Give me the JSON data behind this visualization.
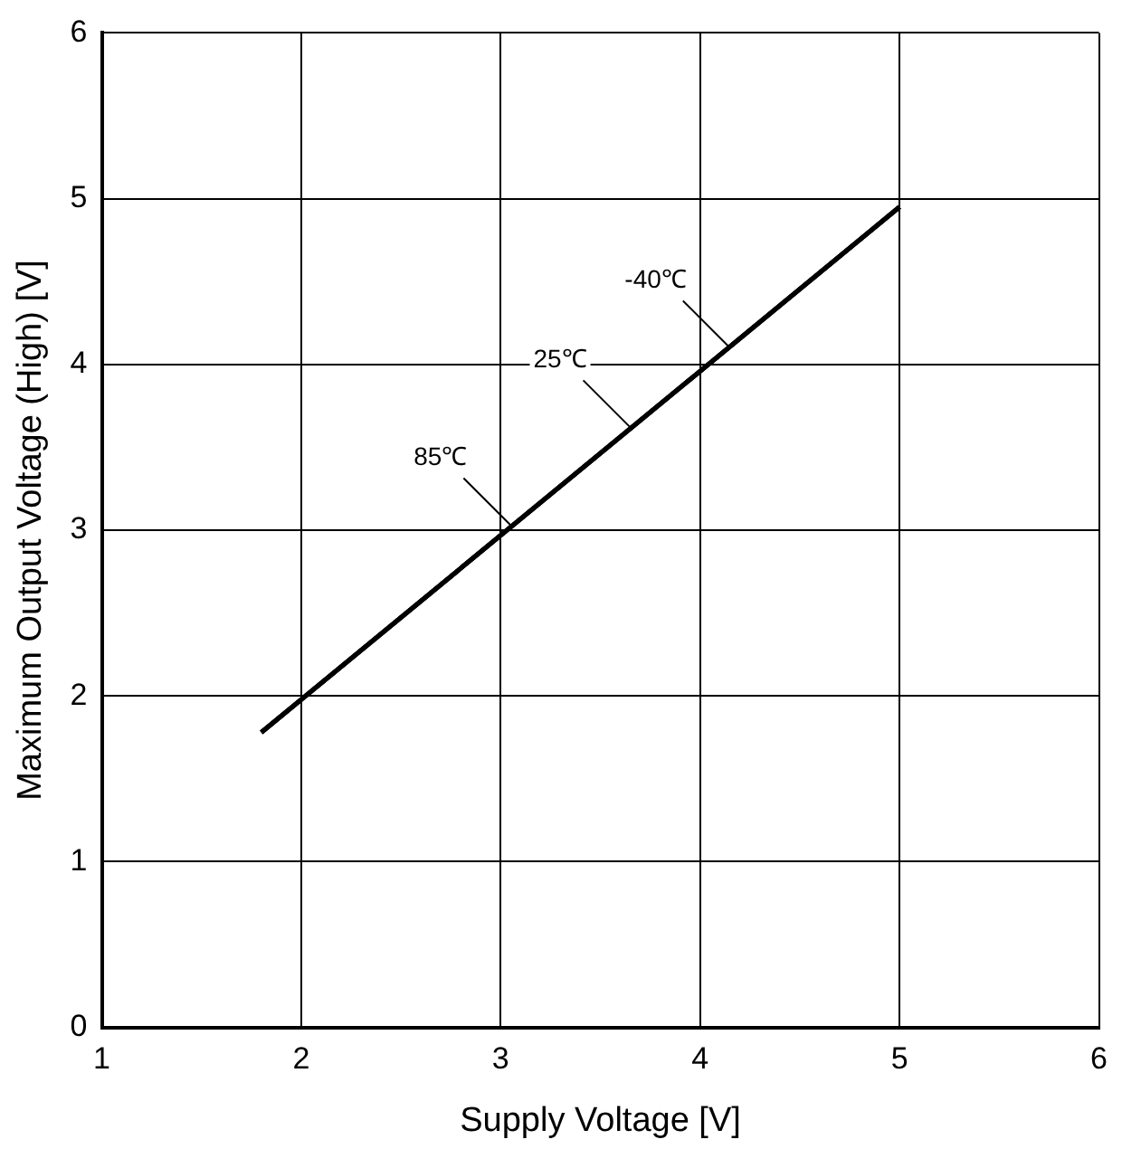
{
  "chart_data": {
    "type": "line",
    "xlabel": "Supply Voltage [V]",
    "ylabel": "Maximum Output Voltage (High) [V]",
    "x": [
      1.8,
      5
    ],
    "series": [
      {
        "color": "#000000",
        "values": [
          1.78,
          4.95
        ]
      },
      {
        "color": "#000000",
        "values": [
          1.78,
          4.95
        ]
      },
      {
        "color": "#000000",
        "values": [
          1.78,
          4.95
        ]
      }
    ],
    "xlim": [
      1,
      6
    ],
    "xticks": [
      1,
      2,
      3,
      4,
      5,
      6
    ],
    "ylim": [
      0,
      6
    ],
    "yticks": [
      0,
      1,
      2,
      3,
      4,
      5,
      6
    ],
    "grid": true,
    "marker": "none",
    "line_style": "solid",
    "annotations": [
      {
        "text": "-40℃",
        "x": 4.15,
        "y": 4.1
      },
      {
        "text": "25℃",
        "x": 3.65,
        "y": 3.62
      },
      {
        "text": "85℃",
        "x": 3.05,
        "y": 3.03
      }
    ]
  }
}
